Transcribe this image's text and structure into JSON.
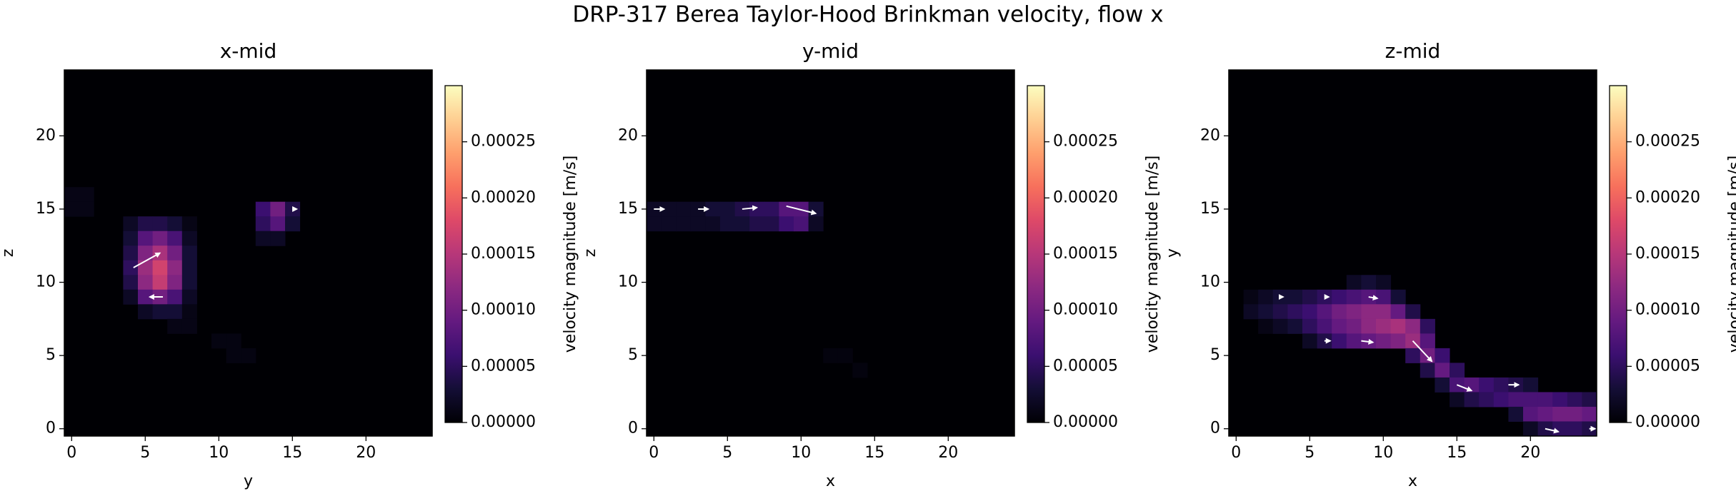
{
  "title": "DRP-317 Berea Taylor-Hood Brinkman velocity, flow x",
  "chart_data": [
    {
      "type": "heatmap",
      "title": "x-mid",
      "xlabel": "y",
      "ylabel": "z",
      "xlim": [
        -0.5,
        24.5
      ],
      "ylim": [
        -0.5,
        24.5
      ],
      "xticks": [
        0,
        5,
        10,
        15,
        20
      ],
      "yticks": [
        0,
        5,
        10,
        15,
        20
      ],
      "cells": [
        [
          0,
          16,
          1e-05
        ],
        [
          1,
          16,
          1e-05
        ],
        [
          0,
          15,
          1e-05
        ],
        [
          1,
          15,
          1e-05
        ],
        [
          4,
          14,
          2e-05
        ],
        [
          5,
          14,
          4e-05
        ],
        [
          6,
          14,
          4e-05
        ],
        [
          7,
          14,
          3e-05
        ],
        [
          8,
          14,
          1e-05
        ],
        [
          4,
          13,
          3e-05
        ],
        [
          5,
          13,
          8e-05
        ],
        [
          6,
          13,
          0.0001
        ],
        [
          7,
          13,
          7e-05
        ],
        [
          8,
          13,
          2e-05
        ],
        [
          4,
          12,
          4e-05
        ],
        [
          5,
          12,
          0.00011
        ],
        [
          6,
          12,
          0.00014
        ],
        [
          7,
          12,
          0.0001
        ],
        [
          8,
          12,
          3e-05
        ],
        [
          4,
          11,
          5e-05
        ],
        [
          5,
          11,
          0.00013
        ],
        [
          6,
          11,
          0.00017
        ],
        [
          7,
          11,
          0.00012
        ],
        [
          8,
          11,
          3e-05
        ],
        [
          4,
          10,
          4e-05
        ],
        [
          5,
          10,
          0.00012
        ],
        [
          6,
          10,
          0.00016
        ],
        [
          7,
          10,
          0.00011
        ],
        [
          8,
          10,
          3e-05
        ],
        [
          4,
          9,
          2e-05
        ],
        [
          5,
          9,
          8e-05
        ],
        [
          6,
          9,
          0.0001
        ],
        [
          7,
          9,
          7e-05
        ],
        [
          8,
          9,
          2e-05
        ],
        [
          5,
          8,
          2e-05
        ],
        [
          6,
          8,
          3e-05
        ],
        [
          7,
          8,
          3e-05
        ],
        [
          8,
          8,
          1e-05
        ],
        [
          7,
          7,
          1e-05
        ],
        [
          8,
          7,
          1e-05
        ],
        [
          13,
          15,
          6e-05
        ],
        [
          14,
          15,
          0.0001
        ],
        [
          15,
          15,
          4e-05
        ],
        [
          13,
          14,
          5e-05
        ],
        [
          14,
          14,
          8e-05
        ],
        [
          15,
          14,
          3e-05
        ],
        [
          13,
          13,
          2e-05
        ],
        [
          14,
          13,
          2e-05
        ],
        [
          10,
          6,
          8e-06
        ],
        [
          11,
          6,
          8e-06
        ],
        [
          11,
          5,
          8e-06
        ],
        [
          12,
          5,
          8e-06
        ]
      ],
      "arrows": [
        [
          4.2,
          11,
          1.8,
          1.0
        ],
        [
          6.2,
          9,
          -0.9,
          0
        ],
        [
          15,
          15,
          0.3,
          0
        ]
      ],
      "colorbar": {
        "label": "velocity magnitude [m/s]",
        "lim": [
          0,
          0.0003
        ],
        "ticks": [
          {
            "value": 0,
            "label": "0.00000"
          },
          {
            "value": 5e-05,
            "label": "0.00005"
          },
          {
            "value": 0.0001,
            "label": "0.00010"
          },
          {
            "value": 0.00015,
            "label": "0.00015"
          },
          {
            "value": 0.0002,
            "label": "0.00020"
          },
          {
            "value": 0.00025,
            "label": "0.00025"
          }
        ]
      }
    },
    {
      "type": "heatmap",
      "title": "y-mid",
      "xlabel": "x",
      "ylabel": "z",
      "xlim": [
        -0.5,
        24.5
      ],
      "ylim": [
        -0.5,
        24.5
      ],
      "xticks": [
        0,
        5,
        10,
        15,
        20
      ],
      "yticks": [
        0,
        5,
        10,
        15,
        20
      ],
      "cells": [
        [
          0,
          15,
          2e-05
        ],
        [
          1,
          15,
          2e-05
        ],
        [
          2,
          15,
          2e-05
        ],
        [
          3,
          15,
          2e-05
        ],
        [
          4,
          15,
          3e-05
        ],
        [
          5,
          15,
          3e-05
        ],
        [
          6,
          15,
          4e-05
        ],
        [
          7,
          15,
          5e-05
        ],
        [
          8,
          15,
          5e-05
        ],
        [
          9,
          15,
          8e-05
        ],
        [
          10,
          15,
          8e-05
        ],
        [
          11,
          15,
          3e-05
        ],
        [
          0,
          14,
          2e-05
        ],
        [
          1,
          14,
          2e-05
        ],
        [
          2,
          14,
          2e-05
        ],
        [
          3,
          14,
          2e-05
        ],
        [
          4,
          14,
          2e-05
        ],
        [
          5,
          14,
          3e-05
        ],
        [
          6,
          14,
          3e-05
        ],
        [
          7,
          14,
          4e-05
        ],
        [
          8,
          14,
          4e-05
        ],
        [
          9,
          14,
          6e-05
        ],
        [
          10,
          14,
          7e-05
        ],
        [
          11,
          14,
          2e-05
        ],
        [
          12,
          5,
          6e-06
        ],
        [
          13,
          5,
          6e-06
        ],
        [
          14,
          4,
          6e-06
        ]
      ],
      "arrows": [
        [
          0,
          15,
          0.7,
          0
        ],
        [
          3,
          15,
          0.7,
          0
        ],
        [
          6,
          15,
          1.0,
          0.1
        ],
        [
          9,
          15.2,
          2.0,
          -0.5
        ]
      ],
      "colorbar": {
        "label": "velocity magnitude [m/s]",
        "lim": [
          0,
          0.0003
        ],
        "ticks": [
          {
            "value": 0,
            "label": "0.00000"
          },
          {
            "value": 5e-05,
            "label": "0.00005"
          },
          {
            "value": 0.0001,
            "label": "0.00010"
          },
          {
            "value": 0.00015,
            "label": "0.00015"
          },
          {
            "value": 0.0002,
            "label": "0.00020"
          },
          {
            "value": 0.00025,
            "label": "0.00025"
          }
        ]
      }
    },
    {
      "type": "heatmap",
      "title": "z-mid",
      "xlabel": "x",
      "ylabel": "y",
      "xlim": [
        -0.5,
        24.5
      ],
      "ylim": [
        -0.5,
        24.5
      ],
      "xticks": [
        0,
        5,
        10,
        15,
        20
      ],
      "yticks": [
        0,
        5,
        10,
        15,
        20
      ],
      "cells": [
        [
          8,
          10,
          2e-05
        ],
        [
          9,
          10,
          3e-05
        ],
        [
          10,
          10,
          2e-05
        ],
        [
          1,
          9,
          1e-05
        ],
        [
          2,
          9,
          2e-05
        ],
        [
          3,
          9,
          3e-05
        ],
        [
          4,
          9,
          3e-05
        ],
        [
          5,
          9,
          4e-05
        ],
        [
          6,
          9,
          5e-05
        ],
        [
          7,
          9,
          6e-05
        ],
        [
          8,
          9,
          7e-05
        ],
        [
          9,
          9,
          8e-05
        ],
        [
          10,
          9,
          7e-05
        ],
        [
          11,
          9,
          3e-05
        ],
        [
          1,
          8,
          2e-05
        ],
        [
          2,
          8,
          3e-05
        ],
        [
          3,
          8,
          4e-05
        ],
        [
          4,
          8,
          5e-05
        ],
        [
          5,
          8,
          6e-05
        ],
        [
          6,
          8,
          8e-05
        ],
        [
          7,
          8,
          0.0001
        ],
        [
          8,
          8,
          0.00011
        ],
        [
          9,
          8,
          0.00012
        ],
        [
          10,
          8,
          0.00012
        ],
        [
          11,
          8,
          9e-05
        ],
        [
          12,
          8,
          4e-05
        ],
        [
          2,
          7,
          1e-05
        ],
        [
          3,
          7,
          2e-05
        ],
        [
          4,
          7,
          3e-05
        ],
        [
          5,
          7,
          5e-05
        ],
        [
          6,
          7,
          7e-05
        ],
        [
          7,
          7,
          9e-05
        ],
        [
          8,
          7,
          0.0001
        ],
        [
          9,
          7,
          0.00012
        ],
        [
          10,
          7,
          0.00013
        ],
        [
          11,
          7,
          0.00014
        ],
        [
          12,
          7,
          0.00012
        ],
        [
          13,
          7,
          5e-05
        ],
        [
          5,
          6,
          2e-05
        ],
        [
          6,
          6,
          4e-05
        ],
        [
          7,
          6,
          6e-05
        ],
        [
          8,
          6,
          8e-05
        ],
        [
          9,
          6,
          9e-05
        ],
        [
          10,
          6,
          0.0001
        ],
        [
          11,
          6,
          0.00011
        ],
        [
          12,
          6,
          0.00013
        ],
        [
          13,
          6,
          8e-05
        ],
        [
          12,
          5,
          5e-05
        ],
        [
          13,
          5,
          0.0001
        ],
        [
          14,
          5,
          6e-05
        ],
        [
          13,
          4,
          4e-05
        ],
        [
          14,
          4,
          9e-05
        ],
        [
          15,
          4,
          5e-05
        ],
        [
          14,
          3,
          3e-05
        ],
        [
          15,
          3,
          7e-05
        ],
        [
          16,
          3,
          8e-05
        ],
        [
          17,
          3,
          6e-05
        ],
        [
          18,
          3,
          5e-05
        ],
        [
          19,
          3,
          4e-05
        ],
        [
          20,
          3,
          3e-05
        ],
        [
          15,
          2,
          2e-05
        ],
        [
          16,
          2,
          4e-05
        ],
        [
          17,
          2,
          5e-05
        ],
        [
          18,
          2,
          6e-05
        ],
        [
          19,
          2,
          7e-05
        ],
        [
          20,
          2,
          7e-05
        ],
        [
          21,
          2,
          7e-05
        ],
        [
          22,
          2,
          6e-05
        ],
        [
          23,
          2,
          5e-05
        ],
        [
          24,
          2,
          4e-05
        ],
        [
          19,
          1,
          3e-05
        ],
        [
          20,
          1,
          8e-05
        ],
        [
          21,
          1,
          9e-05
        ],
        [
          22,
          1,
          0.0001
        ],
        [
          23,
          1,
          0.0001
        ],
        [
          24,
          1,
          9e-05
        ],
        [
          20,
          0,
          2e-05
        ],
        [
          21,
          0,
          4e-05
        ],
        [
          22,
          0,
          5e-05
        ],
        [
          23,
          0,
          5e-05
        ],
        [
          24,
          0,
          4e-05
        ]
      ],
      "arrows": [
        [
          3,
          9,
          0.2,
          0
        ],
        [
          6,
          9,
          0.3,
          0
        ],
        [
          9,
          9,
          0.6,
          -0.1
        ],
        [
          6,
          6,
          0.4,
          0
        ],
        [
          8.5,
          6,
          0.8,
          -0.1
        ],
        [
          12,
          6,
          1.3,
          -1.4
        ],
        [
          15,
          3,
          1.0,
          -0.4
        ],
        [
          18.5,
          3,
          0.7,
          0
        ],
        [
          21,
          0,
          0.9,
          -0.2
        ],
        [
          24,
          0,
          0.4,
          0
        ]
      ],
      "colorbar": {
        "label": "velocity magnitude [m/s]",
        "lim": [
          0,
          0.0003
        ],
        "ticks": [
          {
            "value": 0,
            "label": "0.00000"
          },
          {
            "value": 5e-05,
            "label": "0.00005"
          },
          {
            "value": 0.0001,
            "label": "0.00010"
          },
          {
            "value": 0.00015,
            "label": "0.00015"
          },
          {
            "value": 0.0002,
            "label": "0.00020"
          },
          {
            "value": 0.00025,
            "label": "0.00025"
          }
        ]
      }
    }
  ]
}
